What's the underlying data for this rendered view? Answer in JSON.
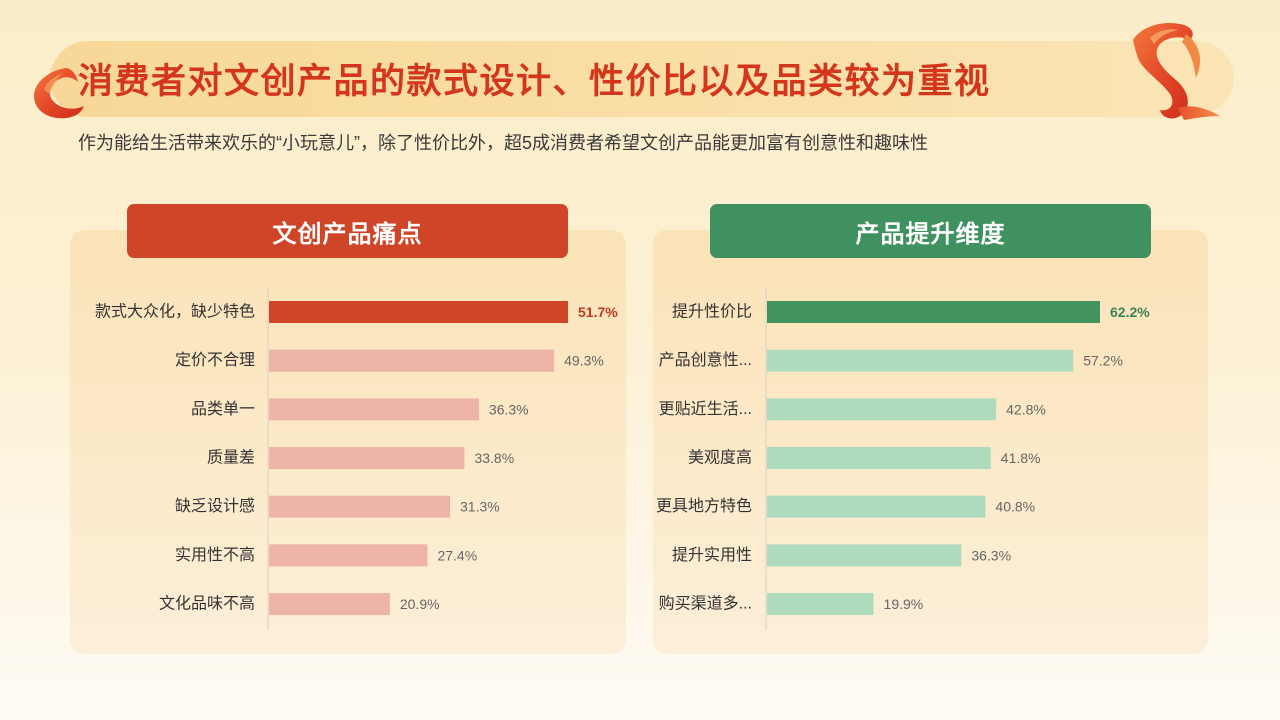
{
  "title": "消费者对文创产品的款式设计、性价比以及品类较为重视",
  "subtitle": "作为能给生活带来欢乐的“小玩意儿”，除了性价比外，超5成消费者希望文创产品能更加富有创意性和趣味性",
  "theme": {
    "title_color": "#D4361C",
    "banner_color": "#F8DC9E",
    "ribbon_color": "#E24A26"
  },
  "chart_data": [
    {
      "type": "bar",
      "orientation": "horizontal",
      "title": "文创产品痛点",
      "header_color": "#CE4527",
      "categories": [
        "款式大众化，缺少特色",
        "定价不合理",
        "品类单一",
        "质量差",
        "缺乏设计感",
        "实用性不高",
        "文化品味不高"
      ],
      "values": [
        51.7,
        49.3,
        36.3,
        33.8,
        31.3,
        27.4,
        20.9
      ],
      "value_labels": [
        "51.7%",
        "49.3%",
        "36.3%",
        "33.8%",
        "31.3%",
        "27.4%",
        "20.9%"
      ],
      "highlight_index": 0,
      "bar_color": "#EDB4A7",
      "highlight_color": "#CE4527",
      "highlight_label_color": "#B83A22",
      "label_color": "#666666",
      "category_color": "#333333",
      "grid": false,
      "legend": false
    },
    {
      "type": "bar",
      "orientation": "horizontal",
      "title": "产品提升维度",
      "header_color": "#3F9160",
      "categories": [
        "提升性价比",
        "产品创意性...",
        "更贴近生活...",
        "美观度高",
        "更具地方特色",
        "提升实用性",
        "购买渠道多..."
      ],
      "values": [
        62.2,
        57.2,
        42.8,
        41.8,
        40.8,
        36.3,
        19.9
      ],
      "value_labels": [
        "62.2%",
        "57.2%",
        "42.8%",
        "41.8%",
        "40.8%",
        "36.3%",
        "19.9%"
      ],
      "highlight_index": 0,
      "bar_color": "#AEDBBE",
      "highlight_color": "#43935F",
      "highlight_label_color": "#3A8253",
      "label_color": "#666666",
      "category_color": "#333333",
      "grid": false,
      "legend": false
    }
  ]
}
